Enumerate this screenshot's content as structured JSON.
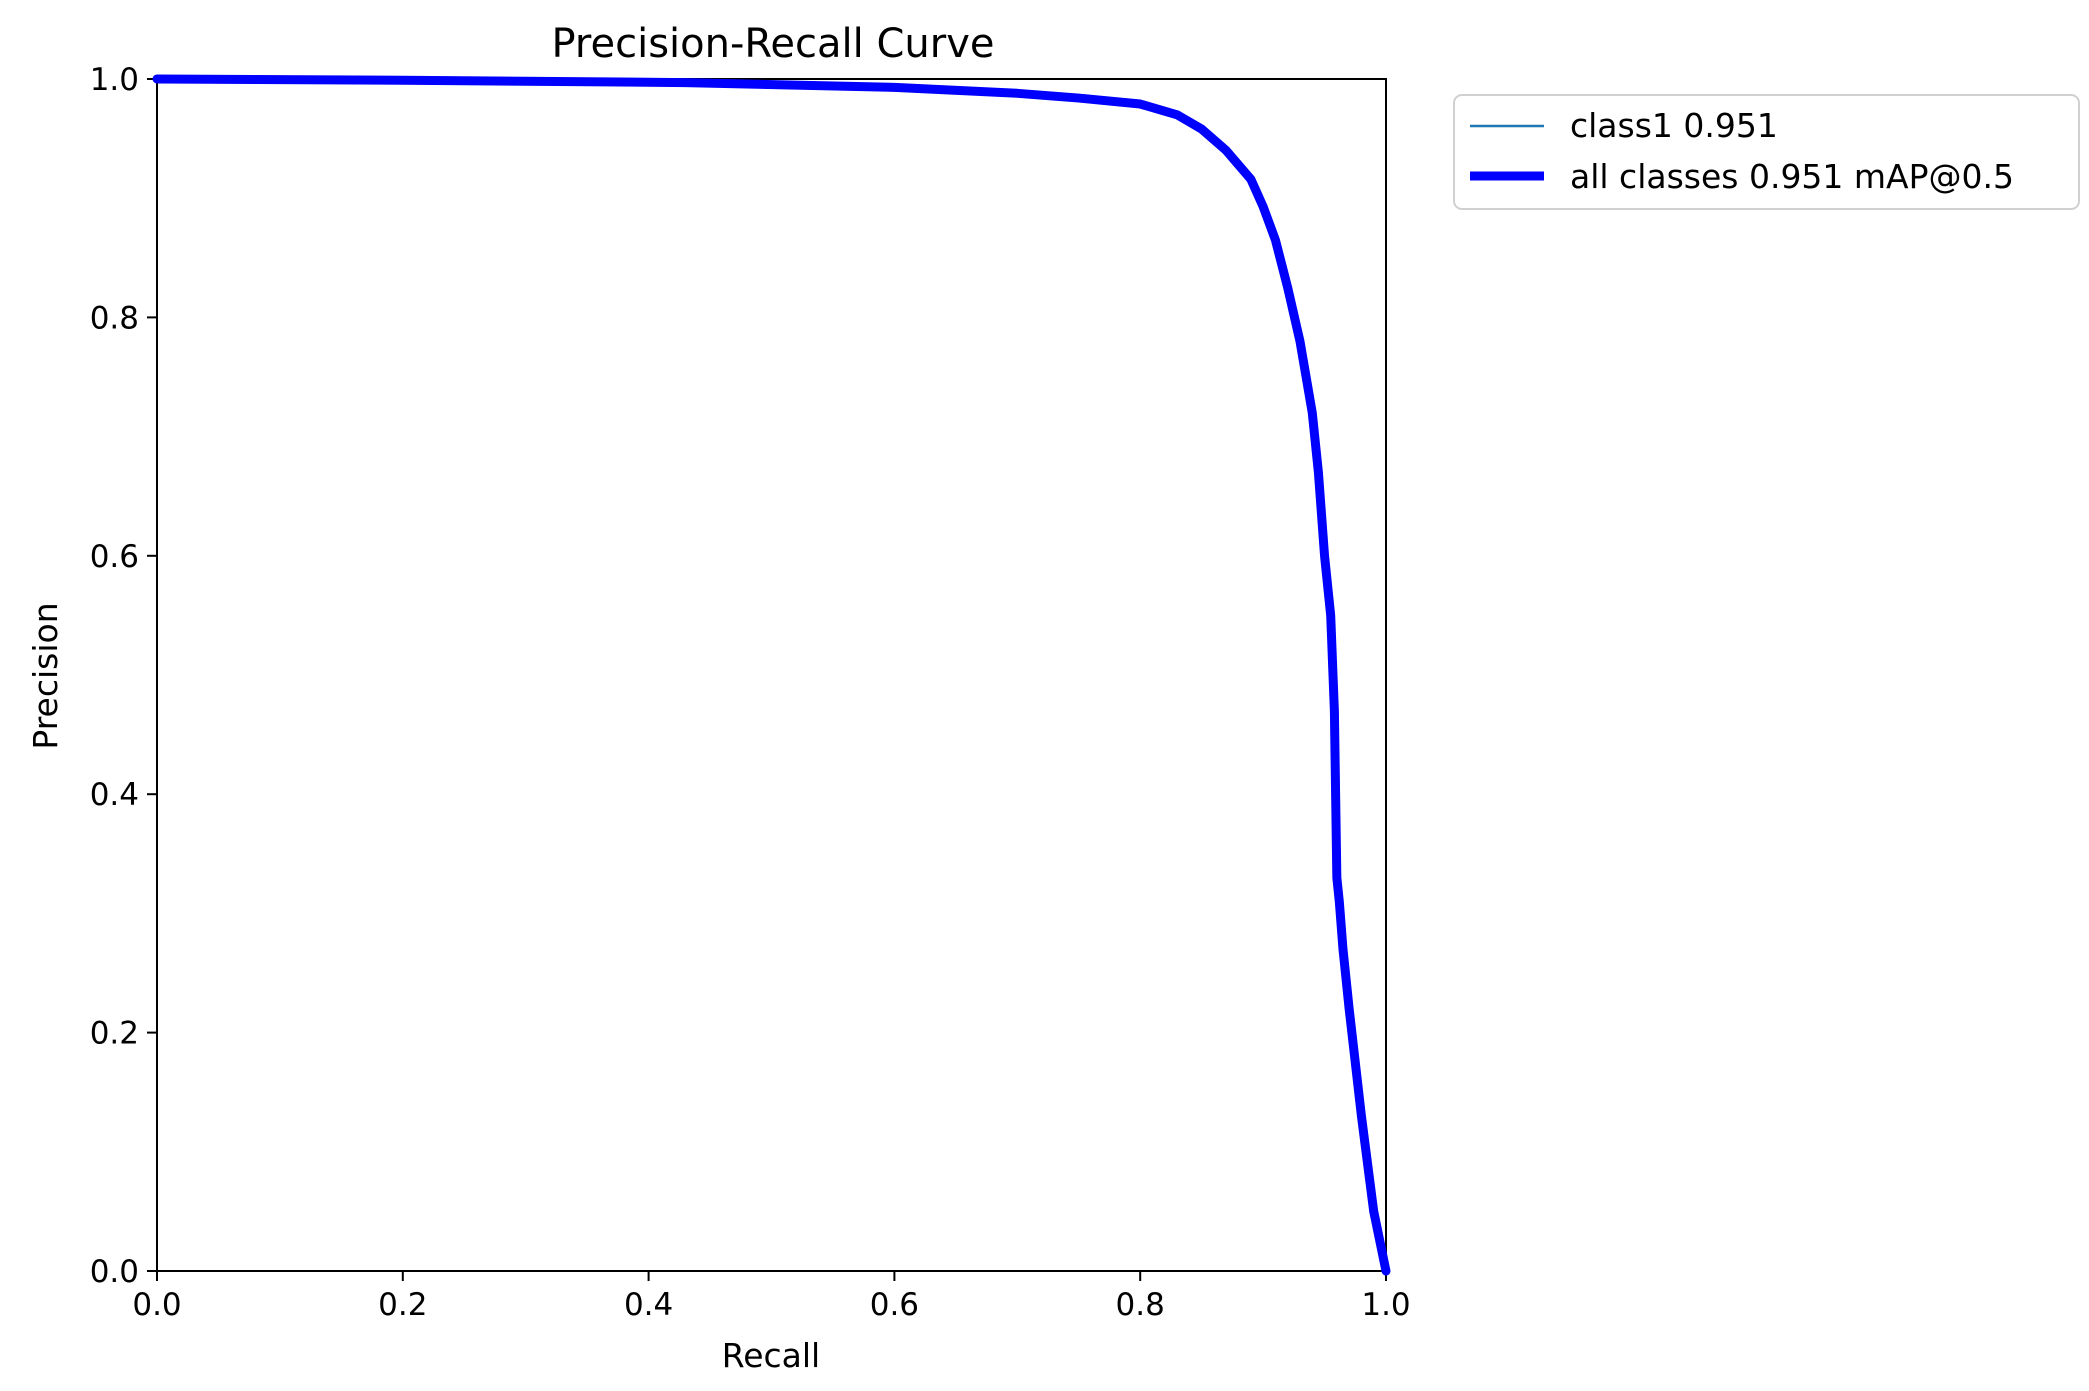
{
  "chart_data": {
    "type": "line",
    "title": "Precision-Recall Curve",
    "xlabel": "Recall",
    "ylabel": "Precision",
    "xlim": [
      0.0,
      1.0
    ],
    "ylim": [
      0.0,
      1.0
    ],
    "xticks": [
      "0.0",
      "0.2",
      "0.4",
      "0.6",
      "0.8",
      "1.0"
    ],
    "yticks": [
      "0.0",
      "0.2",
      "0.4",
      "0.6",
      "0.8",
      "1.0"
    ],
    "grid": false,
    "legend_position": "outside-top-right",
    "series": [
      {
        "name": "class1 0.951",
        "color": "#1f77b4",
        "line_style": "thin",
        "x": [
          0.0,
          0.2,
          0.43,
          0.6,
          0.7,
          0.75,
          0.8,
          0.83,
          0.85,
          0.87,
          0.89,
          0.9,
          0.91,
          0.92,
          0.93,
          0.94,
          0.945,
          0.95,
          0.955,
          0.958,
          0.96,
          0.962,
          0.965,
          0.97,
          0.98,
          0.99,
          1.0
        ],
        "y": [
          1.0,
          0.999,
          0.997,
          0.993,
          0.988,
          0.984,
          0.979,
          0.97,
          0.958,
          0.94,
          0.916,
          0.893,
          0.865,
          0.825,
          0.78,
          0.72,
          0.67,
          0.6,
          0.55,
          0.47,
          0.33,
          0.31,
          0.27,
          0.22,
          0.13,
          0.05,
          0.0
        ]
      },
      {
        "name": "all classes 0.951 mAP@0.5",
        "color": "#0000ff",
        "line_style": "thick",
        "x": [
          0.0,
          0.2,
          0.43,
          0.6,
          0.7,
          0.75,
          0.8,
          0.83,
          0.85,
          0.87,
          0.89,
          0.9,
          0.91,
          0.92,
          0.93,
          0.94,
          0.945,
          0.95,
          0.955,
          0.958,
          0.96,
          0.962,
          0.965,
          0.97,
          0.98,
          0.99,
          1.0
        ],
        "y": [
          1.0,
          0.999,
          0.997,
          0.993,
          0.988,
          0.984,
          0.979,
          0.97,
          0.958,
          0.94,
          0.916,
          0.893,
          0.865,
          0.825,
          0.78,
          0.72,
          0.67,
          0.6,
          0.55,
          0.47,
          0.33,
          0.31,
          0.27,
          0.22,
          0.13,
          0.05,
          0.0
        ]
      }
    ]
  }
}
